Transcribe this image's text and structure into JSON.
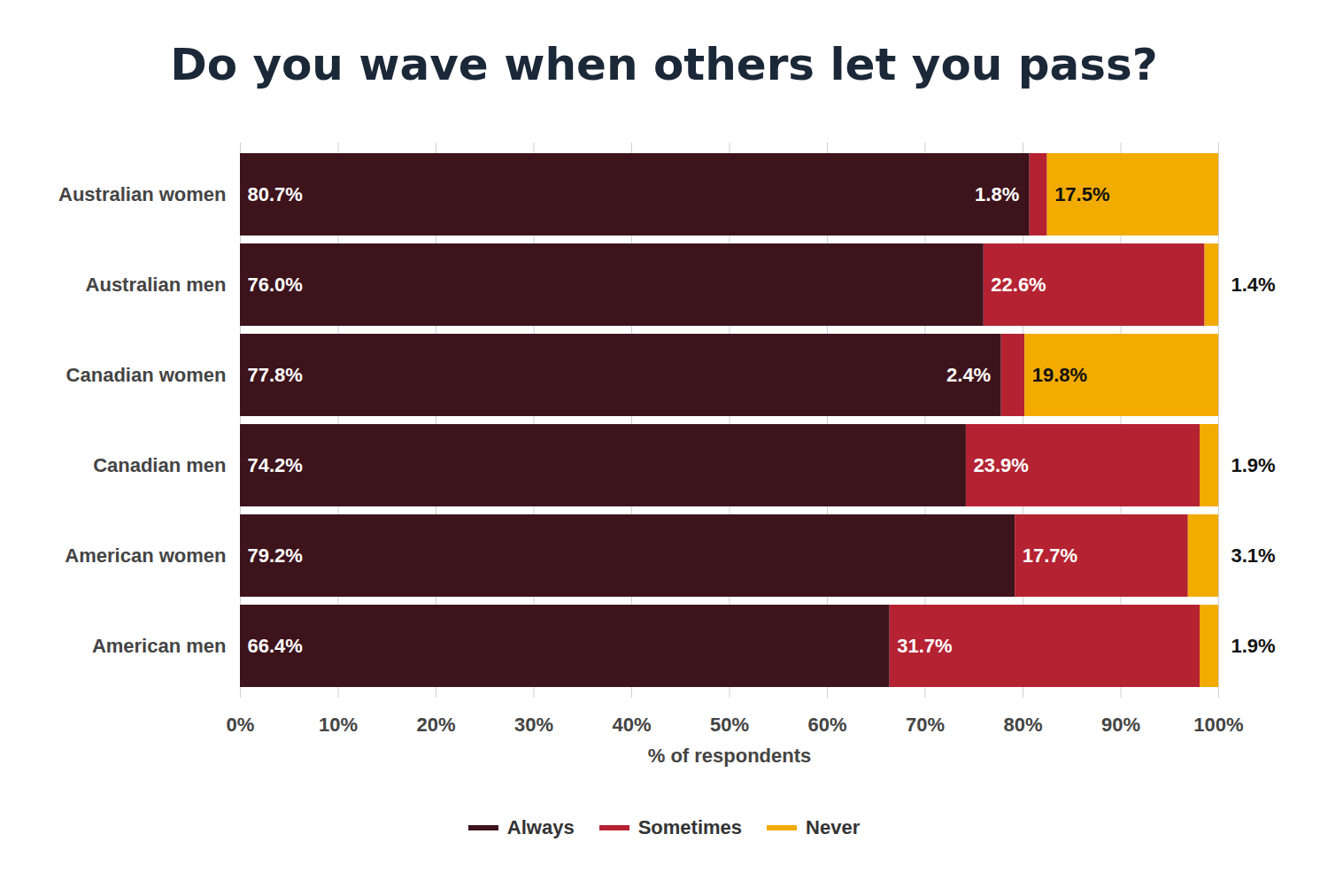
{
  "chart_data": {
    "type": "bar",
    "title": "Do you wave when others let you pass?",
    "orientation": "horizontal",
    "stacked": true,
    "data_labels": true,
    "grid": true,
    "legend": "bottom",
    "categories": [
      "Australian women",
      "Australian men",
      "Canadian women",
      "Canadian men",
      "American women",
      "American men"
    ],
    "series": [
      {
        "name": "Always",
        "color": "#3d131c",
        "values": [
          80.7,
          76.0,
          77.8,
          74.2,
          79.2,
          66.4
        ],
        "value_labels": [
          "80.7%",
          "76.0%",
          "77.8%",
          "74.2%",
          "79.2%",
          "66.4%"
        ]
      },
      {
        "name": "Sometimes",
        "color": "#b52232",
        "values": [
          1.8,
          22.6,
          2.4,
          23.9,
          17.7,
          31.7
        ],
        "value_labels": [
          "1.8%",
          "22.6%",
          "2.4%",
          "23.9%",
          "17.7%",
          "31.7%"
        ]
      },
      {
        "name": "Never",
        "color": "#f2ab00",
        "values": [
          17.5,
          1.4,
          19.8,
          1.9,
          3.1,
          1.9
        ],
        "value_labels": [
          "17.5%",
          "1.4%",
          "19.8%",
          "1.9%",
          "3.1%",
          "1.9%"
        ]
      }
    ],
    "xlabel": "% of respondents",
    "xlim": [
      0,
      100
    ],
    "xticks": [
      {
        "value": 0,
        "label": "0%"
      },
      {
        "value": 10,
        "label": "10%"
      },
      {
        "value": 20,
        "label": "20%"
      },
      {
        "value": 30,
        "label": "30%"
      },
      {
        "value": 40,
        "label": "40%"
      },
      {
        "value": 50,
        "label": "50%"
      },
      {
        "value": 60,
        "label": "60%"
      },
      {
        "value": 70,
        "label": "70%"
      },
      {
        "value": 80,
        "label": "80%"
      },
      {
        "value": 90,
        "label": "90%"
      },
      {
        "value": 100,
        "label": "100%"
      }
    ]
  }
}
